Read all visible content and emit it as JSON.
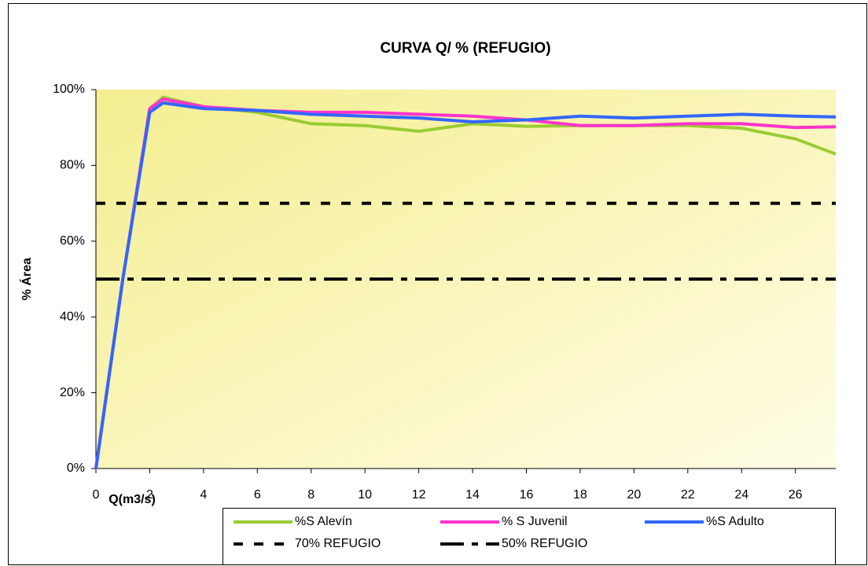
{
  "chart_data": {
    "type": "line",
    "title": "CURVA Q/ % (REFUGIO)",
    "x_label": "Q(m3/s)",
    "y_label": "% Área",
    "x": [
      0,
      1,
      2,
      2.5,
      4,
      6,
      8,
      10,
      12,
      14,
      16,
      18,
      20,
      22,
      24,
      26,
      27.5
    ],
    "series": [
      {
        "name": "%S Alevín",
        "color": "#99cc33",
        "dash": "solid",
        "values": [
          0,
          50,
          95,
          98,
          95.5,
          94,
          91,
          90.5,
          89,
          91,
          90.3,
          90.5,
          90.5,
          90.5,
          89.8,
          87,
          83
        ]
      },
      {
        "name": "% S Juvenil",
        "color": "#ff33cc",
        "dash": "solid",
        "values": [
          0,
          50,
          95,
          97.5,
          95.5,
          94.5,
          94,
          94,
          93.5,
          93,
          92,
          90.5,
          90.5,
          91,
          91,
          90,
          90.2
        ]
      },
      {
        "name": "%S Adulto",
        "color": "#3366ff",
        "dash": "solid",
        "values": [
          0,
          50,
          94,
          96.5,
          95,
          94.5,
          93.5,
          93,
          92.5,
          91.5,
          92,
          93,
          92.5,
          93,
          93.5,
          93,
          92.8
        ]
      },
      {
        "name": "70% REFUGIO",
        "color": "#000000",
        "dash": "dashed",
        "values": [
          70,
          70,
          70,
          70,
          70,
          70,
          70,
          70,
          70,
          70,
          70,
          70,
          70,
          70,
          70,
          70,
          70
        ]
      },
      {
        "name": "50% REFUGIO",
        "color": "#000000",
        "dash": "dash-dot",
        "values": [
          50,
          50,
          50,
          50,
          50,
          50,
          50,
          50,
          50,
          50,
          50,
          50,
          50,
          50,
          50,
          50,
          50
        ]
      }
    ],
    "xlim": [
      0,
      27.5
    ],
    "xticks": [
      0,
      2,
      4,
      6,
      8,
      10,
      12,
      14,
      16,
      18,
      20,
      22,
      24,
      26
    ],
    "ylim": [
      0,
      100
    ],
    "yticks": [
      {
        "value": 0,
        "label": "0%"
      },
      {
        "value": 20,
        "label": "20%"
      },
      {
        "value": 40,
        "label": "40%"
      },
      {
        "value": 60,
        "label": "60%"
      },
      {
        "value": 80,
        "label": "80%"
      },
      {
        "value": 100,
        "label": "100%"
      }
    ],
    "legend": "bottom"
  }
}
